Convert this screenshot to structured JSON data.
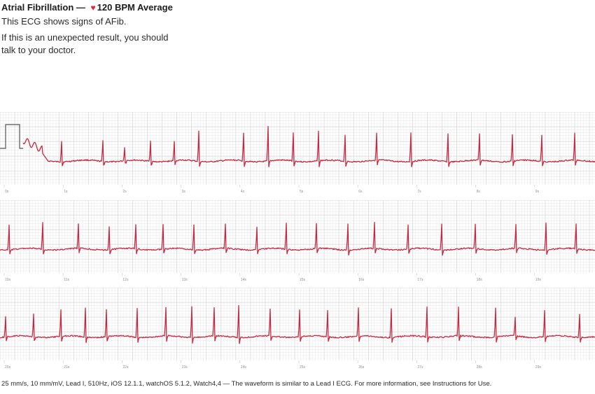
{
  "header": {
    "title": "Atrial Fibrillation",
    "dash": "—",
    "heart_icon": "heart-icon",
    "average": "120 BPM Average",
    "signs": "This ECG shows signs of AFib.",
    "advice": "If this is an unexpected result, you should talk to your doctor."
  },
  "colors": {
    "trace": "#c8283f",
    "grid_minor": "#ececec",
    "grid_major": "#d4d4d4",
    "heart": "#e0263a"
  },
  "strips": [
    {
      "start_s": 0,
      "labels": [
        "0s",
        "1s",
        "2s",
        "3s",
        "4s",
        "5s",
        "6s",
        "7s",
        "8s",
        "9s"
      ]
    },
    {
      "start_s": 10,
      "labels": [
        "10s",
        "11s",
        "12s",
        "13s",
        "14s",
        "15s",
        "16s",
        "17s",
        "18s",
        "19s"
      ]
    },
    {
      "start_s": 20,
      "labels": [
        "20s",
        "21s",
        "22s",
        "23s",
        "24s",
        "25s",
        "26s",
        "27s",
        "28s",
        "29s"
      ]
    }
  ],
  "footer": "25 mm/s, 10 mm/mV, Lead I, 510Hz, iOS 12.1.1, watchOS 5.1.2, Watch4,4 — The waveform is similar to a Lead I ECG. For more information, see Instructions for Use."
}
